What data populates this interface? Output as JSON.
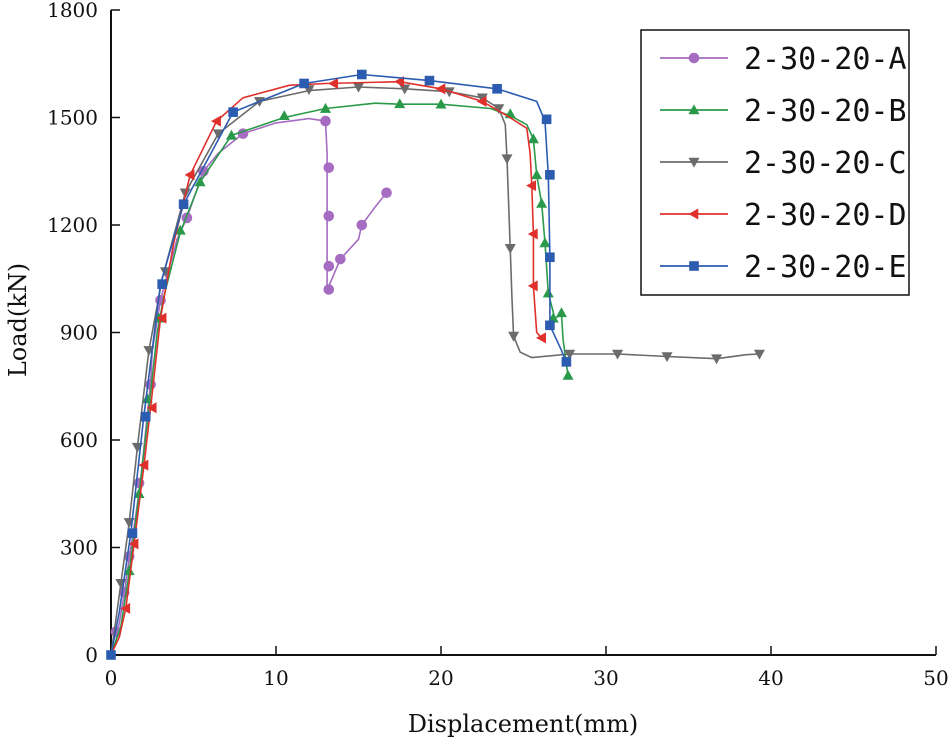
{
  "chart_data": {
    "type": "line",
    "title": "",
    "xlabel": "Displacement(mm)",
    "ylabel": "Load(kN)",
    "xlim": [
      0,
      50
    ],
    "ylim": [
      0,
      1800
    ],
    "xticks": [
      0,
      10,
      20,
      30,
      40,
      50
    ],
    "yticks": [
      0,
      300,
      600,
      900,
      1200,
      1500,
      1800
    ],
    "grid": false,
    "legend_position": "top-right",
    "series": [
      {
        "name": "2-30-20-A",
        "color": "#a56cc1",
        "marker": "circle",
        "points": [
          [
            0,
            0
          ],
          [
            0.3,
            40
          ],
          [
            0.5,
            90
          ],
          [
            0.8,
            170
          ],
          [
            1.1,
            270
          ],
          [
            1.5,
            390
          ],
          [
            1.8,
            490
          ],
          [
            2.4,
            760
          ],
          [
            2.5,
            850
          ],
          [
            3.0,
            990
          ],
          [
            3.4,
            1060
          ],
          [
            4.0,
            1160
          ],
          [
            4.6,
            1220
          ],
          [
            5.6,
            1350
          ],
          [
            6.5,
            1400
          ],
          [
            8.0,
            1455
          ],
          [
            10.0,
            1485
          ],
          [
            12.0,
            1497
          ],
          [
            13.0,
            1490
          ],
          [
            13.1,
            1400
          ],
          [
            13.1,
            1230
          ],
          [
            13.1,
            1085
          ],
          [
            13.1,
            1020
          ],
          [
            13.3,
            1040
          ],
          [
            13.9,
            1105
          ],
          [
            15.0,
            1160
          ],
          [
            15.2,
            1200
          ],
          [
            16.0,
            1250
          ],
          [
            16.7,
            1290
          ]
        ],
        "markers": [
          [
            0.3,
            65
          ],
          [
            0.8,
            175
          ],
          [
            1.1,
            275
          ],
          [
            1.7,
            480
          ],
          [
            2.4,
            755
          ],
          [
            3.0,
            990
          ],
          [
            4.6,
            1220
          ],
          [
            5.6,
            1350
          ],
          [
            8.0,
            1455
          ],
          [
            13.0,
            1490
          ],
          [
            13.2,
            1360
          ],
          [
            13.2,
            1225
          ],
          [
            13.2,
            1085
          ],
          [
            13.2,
            1020
          ],
          [
            13.9,
            1105
          ],
          [
            15.2,
            1200
          ],
          [
            16.7,
            1290
          ]
        ]
      },
      {
        "name": "2-30-20-B",
        "color": "#2a9a4a",
        "marker": "triangle-up",
        "points": [
          [
            0,
            0
          ],
          [
            0.6,
            80
          ],
          [
            1.1,
            230
          ],
          [
            1.7,
            450
          ],
          [
            2.2,
            650
          ],
          [
            2.8,
            900
          ],
          [
            3.2,
            1000
          ],
          [
            4.2,
            1180
          ],
          [
            5.4,
            1320
          ],
          [
            7.3,
            1450
          ],
          [
            10.5,
            1500
          ],
          [
            13.0,
            1525
          ],
          [
            16.0,
            1540
          ],
          [
            17.5,
            1537
          ],
          [
            20.0,
            1537
          ],
          [
            23.0,
            1525
          ],
          [
            24.2,
            1505
          ],
          [
            25.2,
            1480
          ],
          [
            25.6,
            1440
          ],
          [
            25.8,
            1340
          ],
          [
            26.1,
            1260
          ],
          [
            26.3,
            1150
          ],
          [
            26.5,
            1010
          ],
          [
            26.9,
            940
          ],
          [
            27.3,
            950
          ],
          [
            27.4,
            880
          ],
          [
            27.7,
            780
          ]
        ],
        "markers": [
          [
            1.1,
            235
          ],
          [
            1.7,
            450
          ],
          [
            2.2,
            715
          ],
          [
            2.9,
            940
          ],
          [
            4.2,
            1185
          ],
          [
            5.4,
            1320
          ],
          [
            7.3,
            1450
          ],
          [
            10.5,
            1505
          ],
          [
            13.0,
            1525
          ],
          [
            17.5,
            1538
          ],
          [
            20.0,
            1537
          ],
          [
            24.2,
            1510
          ],
          [
            25.6,
            1440
          ],
          [
            25.8,
            1340
          ],
          [
            26.1,
            1260
          ],
          [
            26.3,
            1150
          ],
          [
            26.5,
            1010
          ],
          [
            26.8,
            940
          ],
          [
            27.3,
            955
          ],
          [
            27.7,
            780
          ]
        ]
      },
      {
        "name": "2-30-20-C",
        "color": "#6b6b6b",
        "marker": "triangle-down",
        "points": [
          [
            0,
            0
          ],
          [
            0.6,
            200
          ],
          [
            1.1,
            370
          ],
          [
            1.6,
            580
          ],
          [
            2.3,
            850
          ],
          [
            3.1,
            1050
          ],
          [
            4.5,
            1290
          ],
          [
            6.5,
            1455
          ],
          [
            9.0,
            1545
          ],
          [
            12.0,
            1575
          ],
          [
            15.0,
            1585
          ],
          [
            17.8,
            1580
          ],
          [
            20.5,
            1572
          ],
          [
            22.5,
            1555
          ],
          [
            23.5,
            1525
          ],
          [
            23.9,
            1480
          ],
          [
            24.0,
            1385
          ],
          [
            24.2,
            1130
          ],
          [
            24.3,
            1000
          ],
          [
            24.4,
            890
          ],
          [
            24.8,
            845
          ],
          [
            25.5,
            830
          ],
          [
            27.8,
            840
          ],
          [
            30.7,
            840
          ],
          [
            33.7,
            833
          ],
          [
            36.7,
            827
          ],
          [
            38.5,
            838
          ],
          [
            39.3,
            840
          ]
        ],
        "markers": [
          [
            0.6,
            200
          ],
          [
            1.1,
            370
          ],
          [
            1.6,
            580
          ],
          [
            2.3,
            850
          ],
          [
            3.3,
            1070
          ],
          [
            4.5,
            1290
          ],
          [
            6.5,
            1455
          ],
          [
            9.0,
            1545
          ],
          [
            12.0,
            1578
          ],
          [
            15.0,
            1585
          ],
          [
            17.8,
            1580
          ],
          [
            20.5,
            1572
          ],
          [
            22.5,
            1555
          ],
          [
            23.5,
            1525
          ],
          [
            24.0,
            1385
          ],
          [
            24.2,
            1135
          ],
          [
            24.4,
            890
          ],
          [
            27.8,
            840
          ],
          [
            30.7,
            840
          ],
          [
            33.7,
            833
          ],
          [
            36.7,
            827
          ],
          [
            39.3,
            840
          ]
        ]
      },
      {
        "name": "2-30-20-D",
        "color": "#e0302c",
        "marker": "triangle-left",
        "points": [
          [
            0,
            0
          ],
          [
            0.5,
            50
          ],
          [
            0.9,
            130
          ],
          [
            1.4,
            310
          ],
          [
            2.0,
            530
          ],
          [
            2.4,
            690
          ],
          [
            3.0,
            940
          ],
          [
            3.8,
            1150
          ],
          [
            4.8,
            1340
          ],
          [
            6.4,
            1490
          ],
          [
            8.0,
            1555
          ],
          [
            10.8,
            1590
          ],
          [
            13.0,
            1595
          ],
          [
            17.5,
            1600
          ],
          [
            20.0,
            1580
          ],
          [
            22.5,
            1545
          ],
          [
            24.0,
            1505
          ],
          [
            25.2,
            1470
          ],
          [
            25.4,
            1400
          ],
          [
            25.5,
            1310
          ],
          [
            25.6,
            1175
          ],
          [
            25.6,
            1030
          ],
          [
            25.8,
            900
          ],
          [
            26.1,
            885
          ]
        ],
        "markers": [
          [
            0.9,
            130
          ],
          [
            1.4,
            310
          ],
          [
            2.0,
            530
          ],
          [
            2.5,
            690
          ],
          [
            3.1,
            940
          ],
          [
            4.8,
            1340
          ],
          [
            6.4,
            1490
          ],
          [
            13.5,
            1595
          ],
          [
            17.5,
            1600
          ],
          [
            20.0,
            1580
          ],
          [
            22.5,
            1545
          ],
          [
            25.5,
            1310
          ],
          [
            25.6,
            1175
          ],
          [
            25.6,
            1030
          ],
          [
            26.1,
            885
          ]
        ]
      },
      {
        "name": "2-30-20-E",
        "color": "#2c5cb0",
        "marker": "square",
        "points": [
          [
            0,
            0
          ],
          [
            0.5,
            120
          ],
          [
            1.2,
            340
          ],
          [
            2.0,
            670
          ],
          [
            3.0,
            1035
          ],
          [
            4.4,
            1258
          ],
          [
            7.4,
            1515
          ],
          [
            11.7,
            1595
          ],
          [
            15.2,
            1620
          ],
          [
            19.3,
            1603
          ],
          [
            23.4,
            1580
          ],
          [
            25.8,
            1545
          ],
          [
            26.3,
            1490
          ],
          [
            26.5,
            1340
          ],
          [
            26.6,
            1110
          ],
          [
            26.6,
            920
          ],
          [
            27.3,
            850
          ],
          [
            27.6,
            815
          ]
        ],
        "markers": [
          [
            0,
            0
          ],
          [
            1.3,
            340
          ],
          [
            2.1,
            665
          ],
          [
            3.1,
            1035
          ],
          [
            4.4,
            1258
          ],
          [
            7.4,
            1515
          ],
          [
            11.7,
            1595
          ],
          [
            15.2,
            1620
          ],
          [
            19.3,
            1603
          ],
          [
            23.4,
            1580
          ],
          [
            26.4,
            1495
          ],
          [
            26.6,
            1340
          ],
          [
            26.6,
            1110
          ],
          [
            26.6,
            920
          ],
          [
            27.6,
            818
          ]
        ]
      }
    ]
  }
}
